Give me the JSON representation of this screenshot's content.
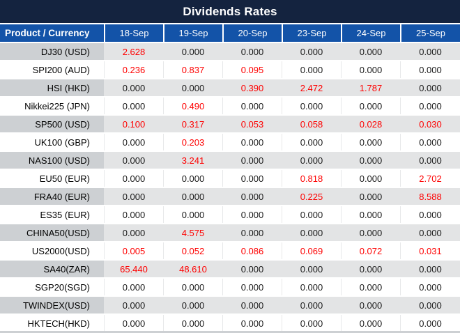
{
  "title": "Dividends Rates",
  "colors": {
    "title_bg": "#14233F",
    "header_bg": "#1353A8",
    "header_text": "#FFFFFF",
    "shaded_product_cell": "#CDD0D3",
    "shaded_value_cell": "#E3E4E5",
    "value_text": "#1A1A1A",
    "nonzero_highlight": "#FE0000"
  },
  "table": {
    "product_header": "Product / Currency",
    "date_headers": [
      "18-Sep",
      "19-Sep",
      "20-Sep",
      "23-Sep",
      "24-Sep",
      "25-Sep"
    ],
    "rows": [
      {
        "product": "DJ30 (USD)",
        "values": [
          "2.628",
          "0.000",
          "0.000",
          "0.000",
          "0.000",
          "0.000"
        ]
      },
      {
        "product": "SPI200 (AUD)",
        "values": [
          "0.236",
          "0.837",
          "0.095",
          "0.000",
          "0.000",
          "0.000"
        ]
      },
      {
        "product": "HSI (HKD)",
        "values": [
          "0.000",
          "0.000",
          "0.390",
          "2.472",
          "1.787",
          "0.000"
        ]
      },
      {
        "product": "Nikkei225 (JPN)",
        "values": [
          "0.000",
          "0.490",
          "0.000",
          "0.000",
          "0.000",
          "0.000"
        ]
      },
      {
        "product": "SP500 (USD)",
        "values": [
          "0.100",
          "0.317",
          "0.053",
          "0.058",
          "0.028",
          "0.030"
        ]
      },
      {
        "product": "UK100 (GBP)",
        "values": [
          "0.000",
          "0.203",
          "0.000",
          "0.000",
          "0.000",
          "0.000"
        ]
      },
      {
        "product": "NAS100 (USD)",
        "values": [
          "0.000",
          "3.241",
          "0.000",
          "0.000",
          "0.000",
          "0.000"
        ]
      },
      {
        "product": "EU50 (EUR)",
        "values": [
          "0.000",
          "0.000",
          "0.000",
          "0.818",
          "0.000",
          "2.702"
        ]
      },
      {
        "product": "FRA40 (EUR)",
        "values": [
          "0.000",
          "0.000",
          "0.000",
          "0.225",
          "0.000",
          "8.588"
        ]
      },
      {
        "product": "ES35 (EUR)",
        "values": [
          "0.000",
          "0.000",
          "0.000",
          "0.000",
          "0.000",
          "0.000"
        ]
      },
      {
        "product": "CHINA50(USD)",
        "values": [
          "0.000",
          "4.575",
          "0.000",
          "0.000",
          "0.000",
          "0.000"
        ]
      },
      {
        "product": "US2000(USD)",
        "values": [
          "0.005",
          "0.052",
          "0.086",
          "0.069",
          "0.072",
          "0.031"
        ]
      },
      {
        "product": "SA40(ZAR)",
        "values": [
          "65.440",
          "48.610",
          "0.000",
          "0.000",
          "0.000",
          "0.000"
        ]
      },
      {
        "product": "SGP20(SGD)",
        "values": [
          "0.000",
          "0.000",
          "0.000",
          "0.000",
          "0.000",
          "0.000"
        ]
      },
      {
        "product": "TWINDEX(USD)",
        "values": [
          "0.000",
          "0.000",
          "0.000",
          "0.000",
          "0.000",
          "0.000"
        ]
      },
      {
        "product": "HKTECH(HKD)",
        "values": [
          "0.000",
          "0.000",
          "0.000",
          "0.000",
          "0.000",
          "0.000"
        ]
      }
    ]
  }
}
